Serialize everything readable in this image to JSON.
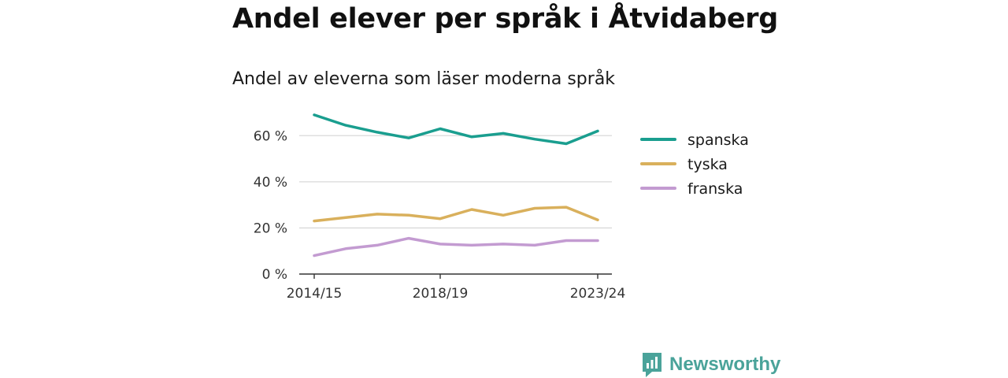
{
  "title": "Andel elever per språk i Åtvidaberg",
  "subtitle": "Andel av eleverna som läser moderna språk",
  "brand": {
    "name": "Newsworthy",
    "color": "#4aa39a"
  },
  "chart_data": {
    "type": "line",
    "x": [
      "2014/15",
      "2015/16",
      "2016/17",
      "2017/18",
      "2018/19",
      "2019/20",
      "2020/21",
      "2021/22",
      "2022/23",
      "2023/24"
    ],
    "x_tick_labels": [
      "2014/15",
      "2018/19",
      "2023/24"
    ],
    "series": [
      {
        "name": "spanska",
        "color": "#1a9e8f",
        "values": [
          69,
          64.5,
          61.5,
          59,
          63,
          59.5,
          61,
          58.5,
          56.5,
          62
        ]
      },
      {
        "name": "tyska",
        "color": "#d9b05c",
        "values": [
          23,
          24.5,
          26,
          25.5,
          24,
          28,
          25.5,
          28.5,
          29,
          23.5
        ]
      },
      {
        "name": "franska",
        "color": "#c39bd1",
        "values": [
          8,
          11,
          12.5,
          15.5,
          13,
          12.5,
          13,
          12.5,
          14.5,
          14.5
        ]
      }
    ],
    "y_ticks": [
      {
        "value": 0,
        "label": "0 %"
      },
      {
        "value": 20,
        "label": "20 %"
      },
      {
        "value": 40,
        "label": "40 %"
      },
      {
        "value": 60,
        "label": "60 %"
      }
    ],
    "ylim": [
      0,
      70
    ],
    "grid": true,
    "legend_position": "right"
  }
}
